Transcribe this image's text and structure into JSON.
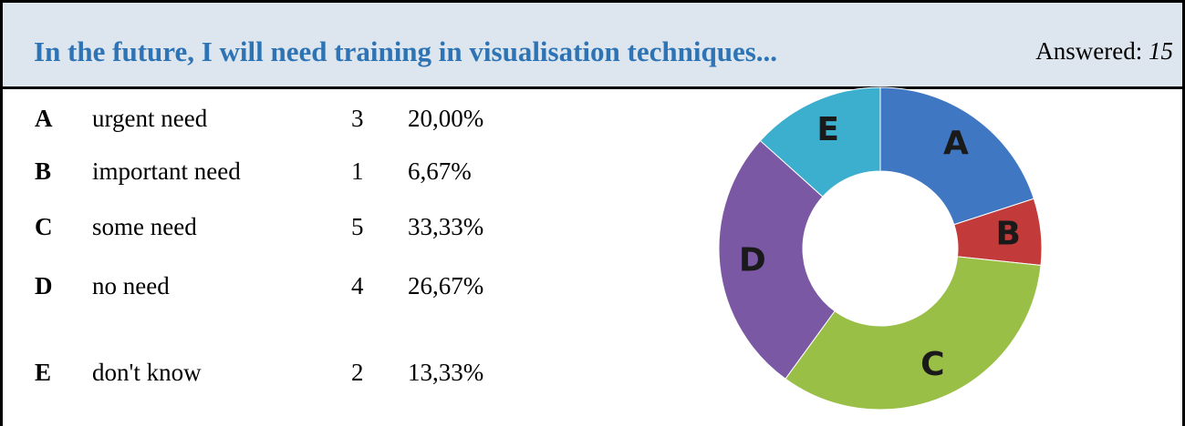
{
  "header": {
    "title": "In the future, I will need training in visualisation techniques...",
    "answered_label": "Answered:",
    "answered_value": 15
  },
  "table": {
    "rows": [
      {
        "letter": "A",
        "label": "urgent need",
        "count": 3,
        "percent": "20,00%"
      },
      {
        "letter": "B",
        "label": "important need",
        "count": 1,
        "percent": "6,67%"
      },
      {
        "letter": "C",
        "label": "some need",
        "count": 5,
        "percent": "33,33%"
      },
      {
        "letter": "D",
        "label": "no need",
        "count": 4,
        "percent": "26,67%"
      },
      {
        "letter": "E",
        "label": "don't know",
        "count": 2,
        "percent": "13,33%"
      }
    ]
  },
  "donut": {
    "colors": [
      "#3f77c3",
      "#c23b3a",
      "#99bf46",
      "#7b58a4",
      "#3bafcd"
    ]
  }
}
